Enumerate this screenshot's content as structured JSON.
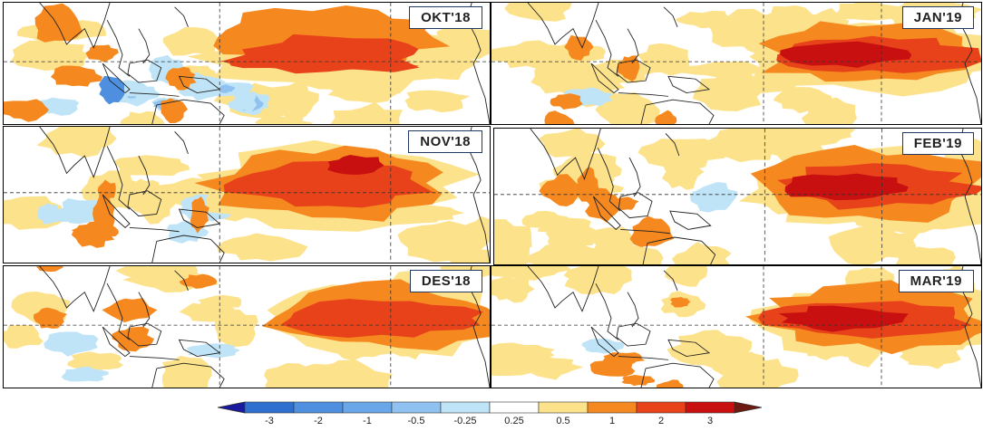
{
  "panels": [
    {
      "label": "OKT'18",
      "variant": 0
    },
    {
      "label": "JAN'19",
      "variant": 3
    },
    {
      "label": "NOV'18",
      "variant": 1
    },
    {
      "label": "FEB'19",
      "variant": 4
    },
    {
      "label": "DES'18",
      "variant": 2
    },
    {
      "label": "MAR'19",
      "variant": 5
    }
  ],
  "colorbar": {
    "tick_labels": [
      "-3",
      "-2",
      "-1",
      "-0.5",
      "-0.25",
      "0.25",
      "0.5",
      "1",
      "2",
      "3"
    ],
    "colors": {
      "deep_blue": "#1a1a9e",
      "blue": "#2f6fd0",
      "mid_blue": "#4f8fe0",
      "light_blue": "#8fc2f0",
      "pale_blue": "#bfe4f7",
      "white": "#ffffff",
      "light_yellow": "#fde28c",
      "orange": "#f5891f",
      "red_orange": "#e8421a",
      "red": "#c81010",
      "dark_red": "#6e1a10"
    }
  }
}
